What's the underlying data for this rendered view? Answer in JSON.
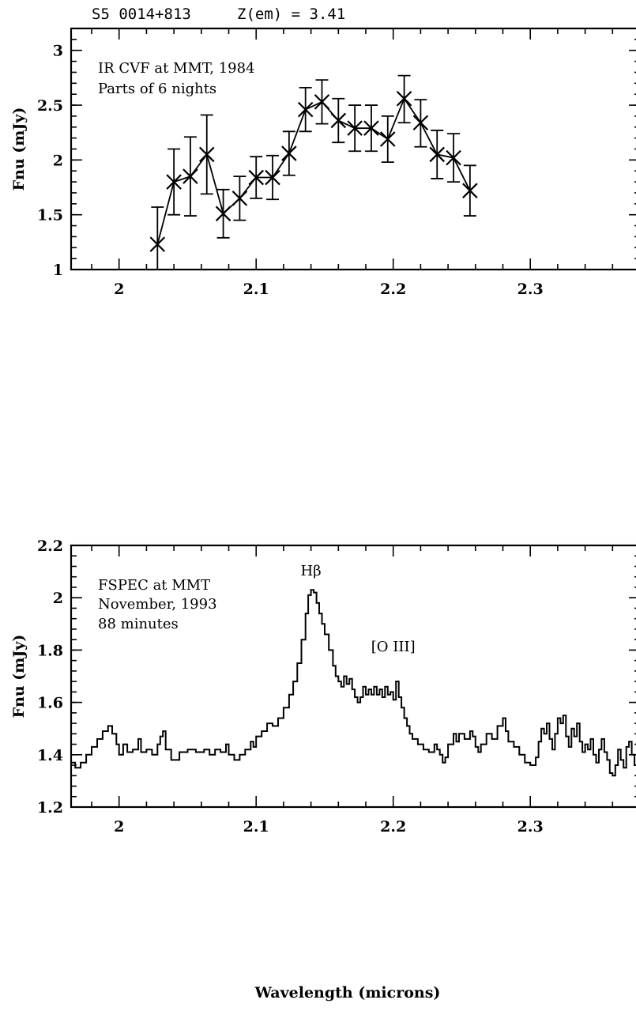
{
  "header": {
    "object": "S5 0014+813",
    "redshift": "Z(em) = 3.41"
  },
  "chart_data": [
    {
      "type": "line",
      "panel": "top",
      "annotations": [
        "IR CVF at MMT, 1984",
        "Parts of 6 nights"
      ],
      "ylabel": "Fnu (mJy)",
      "xlabel": "",
      "xlim": [
        1.965,
        2.38
      ],
      "ylim": [
        1.0,
        3.2
      ],
      "xticks": [
        2,
        2.1,
        2.2,
        2.3
      ],
      "xtick_labels": [
        "2",
        "2.1",
        "2.2",
        "2.3"
      ],
      "yticks": [
        1,
        1.5,
        2,
        2.5,
        3
      ],
      "ytick_labels": [
        "1",
        "1.5",
        "2",
        "2.5",
        "3"
      ],
      "marker": "x",
      "error_bars": true,
      "x": [
        2.028,
        2.04,
        2.052,
        2.064,
        2.076,
        2.088,
        2.1,
        2.112,
        2.124,
        2.136,
        2.148,
        2.16,
        2.172,
        2.184,
        2.196,
        2.208,
        2.22,
        2.232,
        2.244,
        2.256
      ],
      "y": [
        1.23,
        1.8,
        1.85,
        2.05,
        1.51,
        1.65,
        1.84,
        1.84,
        2.06,
        2.46,
        2.53,
        2.36,
        2.29,
        2.29,
        2.19,
        2.56,
        2.34,
        2.05,
        2.02,
        1.72
      ],
      "yerr_high": [
        1.57,
        2.1,
        2.21,
        2.41,
        1.73,
        1.85,
        2.03,
        2.04,
        2.26,
        2.66,
        2.73,
        2.56,
        2.5,
        2.5,
        2.4,
        2.77,
        2.55,
        2.27,
        2.24,
        1.95
      ],
      "yerr_low": [
        0.98,
        1.5,
        1.49,
        1.69,
        1.29,
        1.45,
        1.65,
        1.64,
        1.86,
        2.26,
        2.33,
        2.16,
        2.08,
        2.08,
        1.98,
        2.34,
        2.12,
        1.83,
        1.8,
        1.49
      ]
    },
    {
      "type": "line",
      "panel": "bottom",
      "annotations": [
        "FSPEC at MMT",
        "November, 1993",
        "88 minutes"
      ],
      "line_labels": [
        {
          "text": "Hβ",
          "x": 2.14,
          "y": 2.085
        },
        {
          "text": "[O III]",
          "x": 2.2,
          "y": 1.795
        }
      ],
      "ylabel": "Fnu (mJy)",
      "xlabel": "Wavelength (microns)",
      "xlim": [
        1.965,
        2.38
      ],
      "ylim": [
        1.2,
        2.2
      ],
      "xticks": [
        2,
        2.1,
        2.2,
        2.3
      ],
      "xtick_labels": [
        "2",
        "2.1",
        "2.2",
        "2.3"
      ],
      "yticks": [
        1.2,
        1.4,
        1.6,
        1.8,
        2.0,
        2.2
      ],
      "ytick_labels": [
        "1.2",
        "1.4",
        "1.6",
        "1.8",
        "2",
        "2.2"
      ],
      "style": "steps",
      "spectrum_points": [
        [
          1.965,
          1.37
        ],
        [
          1.968,
          1.35
        ],
        [
          1.972,
          1.37
        ],
        [
          1.976,
          1.4
        ],
        [
          1.98,
          1.43
        ],
        [
          1.984,
          1.46
        ],
        [
          1.988,
          1.49
        ],
        [
          1.992,
          1.51
        ],
        [
          1.995,
          1.48
        ],
        [
          1.998,
          1.44
        ],
        [
          2.0,
          1.4
        ],
        [
          2.003,
          1.44
        ],
        [
          2.006,
          1.41
        ],
        [
          2.01,
          1.42
        ],
        [
          2.014,
          1.46
        ],
        [
          2.016,
          1.41
        ],
        [
          2.02,
          1.42
        ],
        [
          2.024,
          1.4
        ],
        [
          2.028,
          1.44
        ],
        [
          2.03,
          1.47
        ],
        [
          2.032,
          1.49
        ],
        [
          2.034,
          1.42
        ],
        [
          2.038,
          1.38
        ],
        [
          2.044,
          1.41
        ],
        [
          2.05,
          1.42
        ],
        [
          2.056,
          1.41
        ],
        [
          2.062,
          1.42
        ],
        [
          2.066,
          1.4
        ],
        [
          2.07,
          1.42
        ],
        [
          2.074,
          1.41
        ],
        [
          2.078,
          1.44
        ],
        [
          2.08,
          1.4
        ],
        [
          2.084,
          1.38
        ],
        [
          2.088,
          1.4
        ],
        [
          2.092,
          1.42
        ],
        [
          2.096,
          1.45
        ],
        [
          2.098,
          1.43
        ],
        [
          2.1,
          1.47
        ],
        [
          2.104,
          1.49
        ],
        [
          2.108,
          1.52
        ],
        [
          2.112,
          1.51
        ],
        [
          2.116,
          1.54
        ],
        [
          2.12,
          1.58
        ],
        [
          2.124,
          1.63
        ],
        [
          2.127,
          1.68
        ],
        [
          2.13,
          1.75
        ],
        [
          2.133,
          1.84
        ],
        [
          2.136,
          1.94
        ],
        [
          2.138,
          2.01
        ],
        [
          2.14,
          2.03
        ],
        [
          2.142,
          2.02
        ],
        [
          2.144,
          1.98
        ],
        [
          2.146,
          1.94
        ],
        [
          2.148,
          1.9
        ],
        [
          2.15,
          1.86
        ],
        [
          2.153,
          1.8
        ],
        [
          2.156,
          1.74
        ],
        [
          2.158,
          1.7
        ],
        [
          2.16,
          1.68
        ],
        [
          2.162,
          1.66
        ],
        [
          2.164,
          1.7
        ],
        [
          2.166,
          1.67
        ],
        [
          2.168,
          1.69
        ],
        [
          2.17,
          1.65
        ],
        [
          2.172,
          1.62
        ],
        [
          2.174,
          1.6
        ],
        [
          2.176,
          1.62
        ],
        [
          2.178,
          1.66
        ],
        [
          2.18,
          1.63
        ],
        [
          2.182,
          1.65
        ],
        [
          2.184,
          1.63
        ],
        [
          2.186,
          1.66
        ],
        [
          2.188,
          1.63
        ],
        [
          2.19,
          1.65
        ],
        [
          2.192,
          1.62
        ],
        [
          2.194,
          1.66
        ],
        [
          2.196,
          1.63
        ],
        [
          2.198,
          1.64
        ],
        [
          2.2,
          1.61
        ],
        [
          2.202,
          1.68
        ],
        [
          2.204,
          1.62
        ],
        [
          2.206,
          1.58
        ],
        [
          2.208,
          1.54
        ],
        [
          2.21,
          1.51
        ],
        [
          2.212,
          1.48
        ],
        [
          2.214,
          1.46
        ],
        [
          2.218,
          1.44
        ],
        [
          2.222,
          1.42
        ],
        [
          2.226,
          1.41
        ],
        [
          2.23,
          1.44
        ],
        [
          2.232,
          1.42
        ],
        [
          2.234,
          1.4
        ],
        [
          2.236,
          1.37
        ],
        [
          2.238,
          1.39
        ],
        [
          2.24,
          1.44
        ],
        [
          2.244,
          1.48
        ],
        [
          2.246,
          1.45
        ],
        [
          2.248,
          1.48
        ],
        [
          2.252,
          1.46
        ],
        [
          2.256,
          1.49
        ],
        [
          2.258,
          1.47
        ],
        [
          2.26,
          1.43
        ],
        [
          2.262,
          1.41
        ],
        [
          2.264,
          1.44
        ],
        [
          2.268,
          1.48
        ],
        [
          2.272,
          1.46
        ],
        [
          2.276,
          1.51
        ],
        [
          2.28,
          1.54
        ],
        [
          2.282,
          1.49
        ],
        [
          2.284,
          1.45
        ],
        [
          2.288,
          1.43
        ],
        [
          2.292,
          1.4
        ],
        [
          2.296,
          1.37
        ],
        [
          2.3,
          1.36
        ],
        [
          2.304,
          1.39
        ],
        [
          2.306,
          1.45
        ],
        [
          2.308,
          1.5
        ],
        [
          2.31,
          1.48
        ],
        [
          2.312,
          1.52
        ],
        [
          2.314,
          1.46
        ],
        [
          2.316,
          1.42
        ],
        [
          2.318,
          1.48
        ],
        [
          2.32,
          1.54
        ],
        [
          2.322,
          1.52
        ],
        [
          2.324,
          1.55
        ],
        [
          2.326,
          1.47
        ],
        [
          2.328,
          1.43
        ],
        [
          2.33,
          1.5
        ],
        [
          2.332,
          1.47
        ],
        [
          2.334,
          1.52
        ],
        [
          2.336,
          1.45
        ],
        [
          2.338,
          1.41
        ],
        [
          2.34,
          1.44
        ],
        [
          2.342,
          1.42
        ],
        [
          2.344,
          1.46
        ],
        [
          2.346,
          1.4
        ],
        [
          2.348,
          1.37
        ],
        [
          2.35,
          1.42
        ],
        [
          2.352,
          1.46
        ],
        [
          2.354,
          1.41
        ],
        [
          2.356,
          1.38
        ],
        [
          2.358,
          1.33
        ],
        [
          2.36,
          1.32
        ],
        [
          2.362,
          1.36
        ],
        [
          2.364,
          1.42
        ],
        [
          2.366,
          1.38
        ],
        [
          2.368,
          1.35
        ],
        [
          2.37,
          1.43
        ],
        [
          2.372,
          1.45
        ],
        [
          2.374,
          1.4
        ],
        [
          2.376,
          1.36
        ],
        [
          2.378,
          1.44
        ],
        [
          2.38,
          1.46
        ]
      ]
    }
  ]
}
